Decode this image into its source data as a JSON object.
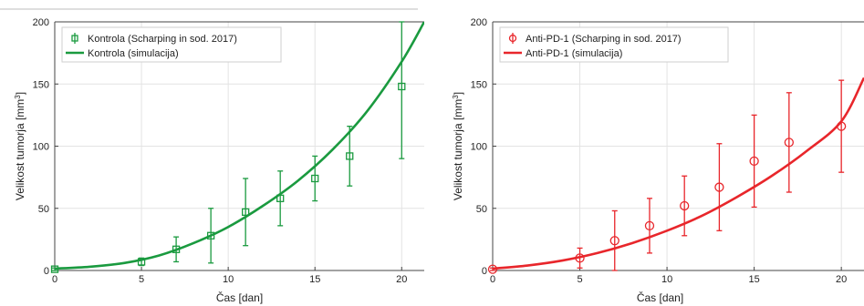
{
  "chart_data": [
    {
      "type": "line",
      "xlabel": "Čas [dan]",
      "ylabel": "Velikost tumorja [mm",
      "ylabel_sup": "3",
      "ylabel_end": "]",
      "xlim": [
        0,
        21.3
      ],
      "ylim": [
        0,
        200
      ],
      "xticks": [
        0,
        5,
        10,
        15,
        20
      ],
      "yticks": [
        0,
        50,
        100,
        150,
        200
      ],
      "grid": true,
      "legend_position": "top-left",
      "color": "#1a9a3f",
      "marker": "square",
      "series": [
        {
          "name": "Kontrola (Scharping in sod. 2017)",
          "kind": "errorbar",
          "x": [
            0,
            5,
            7,
            9,
            11,
            13,
            15,
            17,
            20
          ],
          "y": [
            1,
            7,
            17,
            28,
            47,
            58,
            74,
            92,
            148
          ],
          "err": [
            1,
            3,
            10,
            22,
            27,
            22,
            18,
            24,
            58
          ]
        },
        {
          "name": "Kontrola (simulacija)",
          "kind": "line",
          "x": [
            0,
            2,
            4,
            6,
            8,
            10,
            12,
            14,
            16,
            18,
            20,
            21.3
          ],
          "y": [
            1.5,
            3,
            6,
            12,
            22,
            35,
            52,
            72,
            97,
            128,
            168,
            200
          ]
        }
      ]
    },
    {
      "type": "line",
      "xlabel": "Čas [dan]",
      "ylabel": "Velikost tumorja [mm",
      "ylabel_sup": "3",
      "ylabel_end": "]",
      "xlim": [
        0,
        21.3
      ],
      "ylim": [
        0,
        200
      ],
      "xticks": [
        0,
        5,
        10,
        15,
        20
      ],
      "yticks": [
        0,
        50,
        100,
        150,
        200
      ],
      "grid": true,
      "legend_position": "top-left",
      "color": "#e8262b",
      "marker": "circle",
      "series": [
        {
          "name": "Anti-PD-1 (Scharping in sod. 2017)",
          "kind": "errorbar",
          "x": [
            0,
            5,
            7,
            9,
            11,
            13,
            15,
            17,
            20
          ],
          "y": [
            1,
            10,
            24,
            36,
            52,
            67,
            88,
            103,
            116
          ],
          "err": [
            1,
            8,
            24,
            22,
            24,
            35,
            37,
            40,
            37
          ]
        },
        {
          "name": "Anti-PD-1 (simulacija)",
          "kind": "line",
          "x": [
            0,
            2,
            4,
            6,
            8,
            10,
            12,
            14,
            16,
            18,
            20,
            21.3
          ],
          "y": [
            1.5,
            4,
            8,
            14,
            22,
            32,
            44,
            59,
            76,
            96,
            120,
            155
          ]
        }
      ]
    }
  ]
}
